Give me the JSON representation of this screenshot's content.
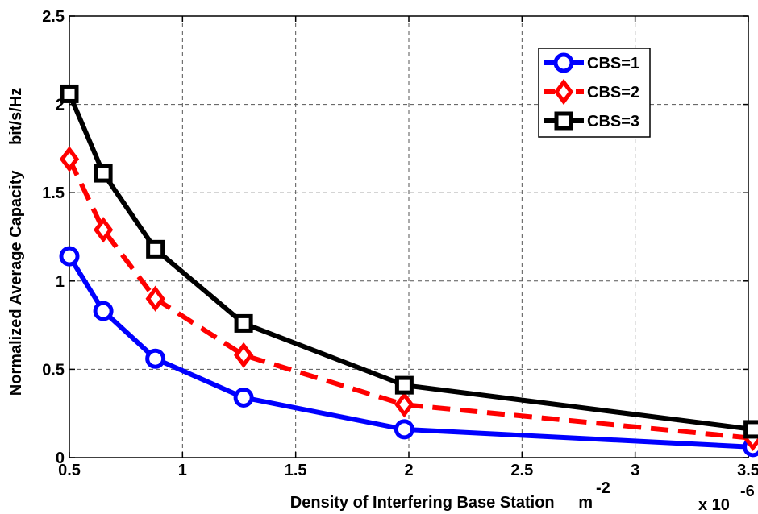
{
  "chart_data": {
    "type": "line",
    "xlabel": "Density of Interfering Base Station",
    "xlabel_unit": "m",
    "xlabel_unit_exp": "-2",
    "ylabel": "Normalized Average Capacity",
    "ylabel_unit": "bit/s/Hz",
    "x_multiplier_base": "x 10",
    "x_multiplier_exp": "-6",
    "xlim": [
      0.5,
      3.5
    ],
    "ylim": [
      0,
      2.5
    ],
    "xticks": [
      0.5,
      1,
      1.5,
      2,
      2.5,
      3,
      3.5
    ],
    "xtick_labels": [
      "0.5",
      "1",
      "1.5",
      "2",
      "2.5",
      "3",
      "3.5"
    ],
    "yticks": [
      0,
      0.5,
      1,
      1.5,
      2,
      2.5
    ],
    "ytick_labels": [
      "0",
      "0.5",
      "1",
      "1.5",
      "2",
      "2.5"
    ],
    "grid": true,
    "legend_position": "top-right",
    "x": [
      0.5,
      0.65,
      0.88,
      1.27,
      1.98,
      3.52
    ],
    "series": [
      {
        "name": "CBS=1",
        "values": [
          1.14,
          0.83,
          0.56,
          0.34,
          0.16,
          0.06
        ],
        "color": "#0000ff",
        "marker": "circle",
        "dash": "solid"
      },
      {
        "name": "CBS=2",
        "values": [
          1.69,
          1.29,
          0.9,
          0.58,
          0.3,
          0.11
        ],
        "color": "#ff0000",
        "marker": "diamond",
        "dash": "dashed"
      },
      {
        "name": "CBS=3",
        "values": [
          2.06,
          1.61,
          1.18,
          0.76,
          0.41,
          0.16
        ],
        "color": "#000000",
        "marker": "square",
        "dash": "solid"
      }
    ]
  }
}
